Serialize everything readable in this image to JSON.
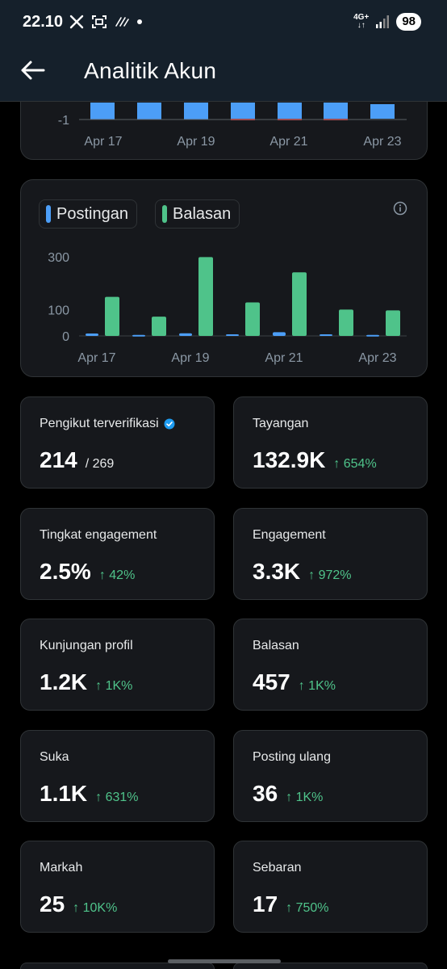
{
  "status_bar": {
    "time": "22.10",
    "network": "4G+",
    "battery": "98",
    "icons": [
      "x-logo-icon",
      "screenshot-icon",
      "data-saver-icon",
      "dot-icon",
      "signal-icon"
    ]
  },
  "header": {
    "title": "Analitik Akun",
    "back_icon": "back-arrow-icon"
  },
  "chart_top": {
    "y_tick": "-1",
    "x_labels": [
      "Apr 17",
      "Apr 19",
      "Apr 21",
      "Apr 23"
    ],
    "bar_color": "#4c9ef7",
    "negative_color": "#e0383e"
  },
  "chart_data": {
    "type": "bar",
    "categories": [
      "Apr 17",
      "Apr 18",
      "Apr 19",
      "Apr 20",
      "Apr 21",
      "Apr 22",
      "Apr 23"
    ],
    "x_tick_labels": [
      "Apr 17",
      "Apr 19",
      "Apr 21",
      "Apr 23"
    ],
    "y_ticks": [
      "300",
      "100",
      "0"
    ],
    "ylim": [
      0,
      300
    ],
    "series": [
      {
        "name": "Postingan",
        "color": "#4c9ef7",
        "values": [
          9,
          4,
          10,
          6,
          14,
          6,
          4
        ]
      },
      {
        "name": "Balasan",
        "color": "#4fc38a",
        "values": [
          148,
          73,
          299,
          127,
          241,
          100,
          97
        ]
      }
    ],
    "legend_position": "top-left"
  },
  "stats": [
    {
      "label": "Pengikut terverifikasi",
      "value": "214",
      "sub": "/ 269",
      "change": "",
      "verified": true
    },
    {
      "label": "Tayangan",
      "value": "132.9K",
      "sub": "",
      "change": "↑ 654%"
    },
    {
      "label": "Tingkat engagement",
      "value": "2.5%",
      "sub": "",
      "change": "↑ 42%"
    },
    {
      "label": "Engagement",
      "value": "3.3K",
      "sub": "",
      "change": "↑ 972%"
    },
    {
      "label": "Kunjungan profil",
      "value": "1.2K",
      "sub": "",
      "change": "↑ 1K%"
    },
    {
      "label": "Balasan",
      "value": "457",
      "sub": "",
      "change": "↑ 1K%"
    },
    {
      "label": "Suka",
      "value": "1.1K",
      "sub": "",
      "change": "↑ 631%"
    },
    {
      "label": "Posting ulang",
      "value": "36",
      "sub": "",
      "change": "↑ 1K%"
    },
    {
      "label": "Markah",
      "value": "25",
      "sub": "",
      "change": "↑ 10K%"
    },
    {
      "label": "Sebaran",
      "value": "17",
      "sub": "",
      "change": "↑ 750%"
    }
  ]
}
